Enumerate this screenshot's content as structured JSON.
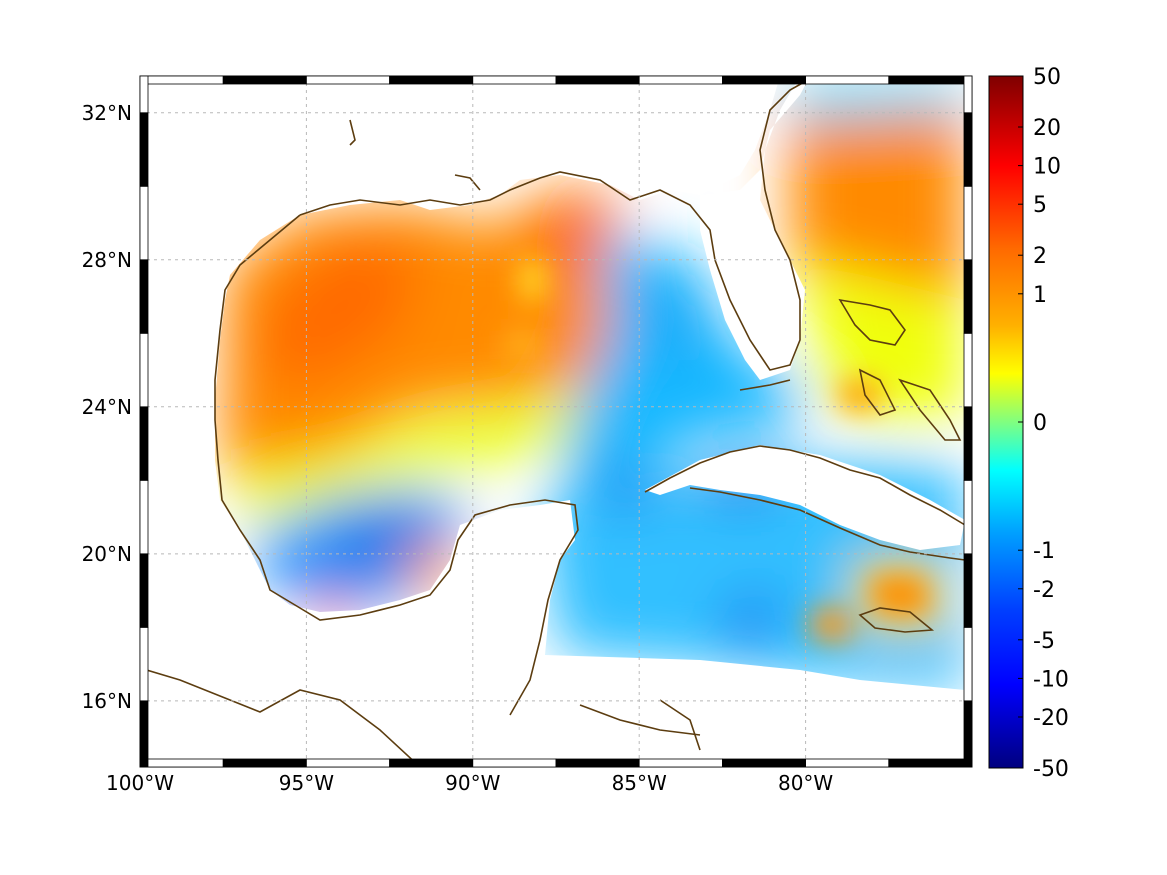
{
  "map": {
    "lon_range": [
      -100,
      -75
    ],
    "lat_range": [
      14.2,
      33
    ],
    "x_ticks": [
      {
        "value": -100,
        "label": "100°W"
      },
      {
        "value": -95,
        "label": "95°W"
      },
      {
        "value": -90,
        "label": "90°W"
      },
      {
        "value": -85,
        "label": "85°W"
      },
      {
        "value": -80,
        "label": "80°W"
      }
    ],
    "y_ticks": [
      {
        "value": 32,
        "label": "32°N"
      },
      {
        "value": 28,
        "label": "28°N"
      },
      {
        "value": 24,
        "label": "24°N"
      },
      {
        "value": 20,
        "label": "20°N"
      },
      {
        "value": 16,
        "label": "16°N"
      }
    ],
    "grid": true,
    "coastline_color": "#5c3d10"
  },
  "colorbar": {
    "scale": "symmetric-log",
    "range": [
      -50,
      50
    ],
    "tick_labels": [
      "50",
      "20",
      "10",
      "5",
      "2",
      "1",
      "0",
      "-1",
      "-2",
      "-5",
      "-10",
      "-20",
      "-50"
    ],
    "tick_values": [
      50,
      20,
      10,
      5,
      2,
      1,
      0,
      -1,
      -2,
      -5,
      -10,
      -20,
      -50
    ],
    "colors": [
      "#7f0000",
      "#ff0000",
      "#ff8000",
      "#ffff00",
      "#80ff80",
      "#00ffff",
      "#0080ff",
      "#0000ff",
      "#00007f"
    ]
  }
}
